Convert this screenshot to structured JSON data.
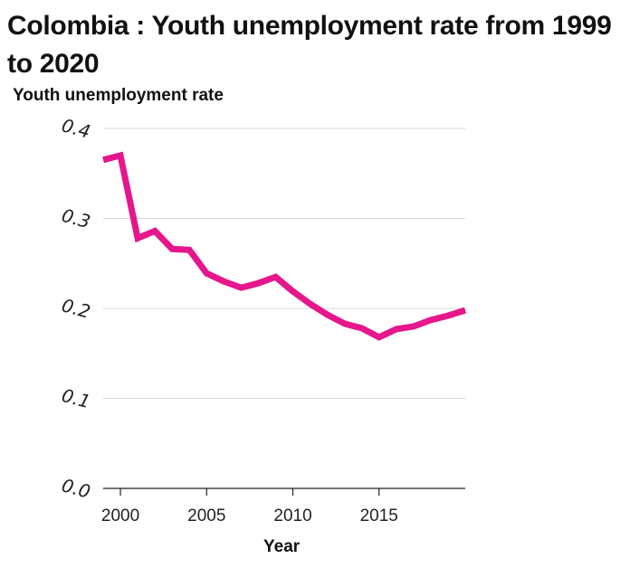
{
  "chart_data": {
    "type": "line",
    "title": "Colombia : Youth unemployment rate from 1999 to 2020",
    "xlabel": "Year",
    "ylabel": "Youth unemployment rate",
    "xlim": [
      1999,
      2020
    ],
    "ylim": [
      0.0,
      0.4
    ],
    "x_ticks": [
      2000,
      2005,
      2010,
      2015
    ],
    "x_tick_labels": [
      "2000",
      "2005",
      "2010",
      "2015"
    ],
    "y_ticks": [
      0.0,
      0.1,
      0.2,
      0.3,
      0.4
    ],
    "y_tick_labels": [
      "0.0",
      "0.1",
      "0.2",
      "0.3",
      "0.4"
    ],
    "grid": "horizontal",
    "series": [
      {
        "color": "#e6168c",
        "x": [
          1999,
          2000,
          2001,
          2002,
          2003,
          2004,
          2005,
          2006,
          2007,
          2008,
          2009,
          2010,
          2011,
          2012,
          2013,
          2014,
          2015,
          2016,
          2017,
          2018,
          2019,
          2020
        ],
        "values": [
          0.365,
          0.37,
          0.278,
          0.286,
          0.266,
          0.265,
          0.239,
          0.23,
          0.223,
          0.228,
          0.235,
          0.219,
          0.205,
          0.193,
          0.183,
          0.178,
          0.168,
          0.177,
          0.18,
          0.187,
          0.192,
          0.198
        ]
      }
    ]
  }
}
